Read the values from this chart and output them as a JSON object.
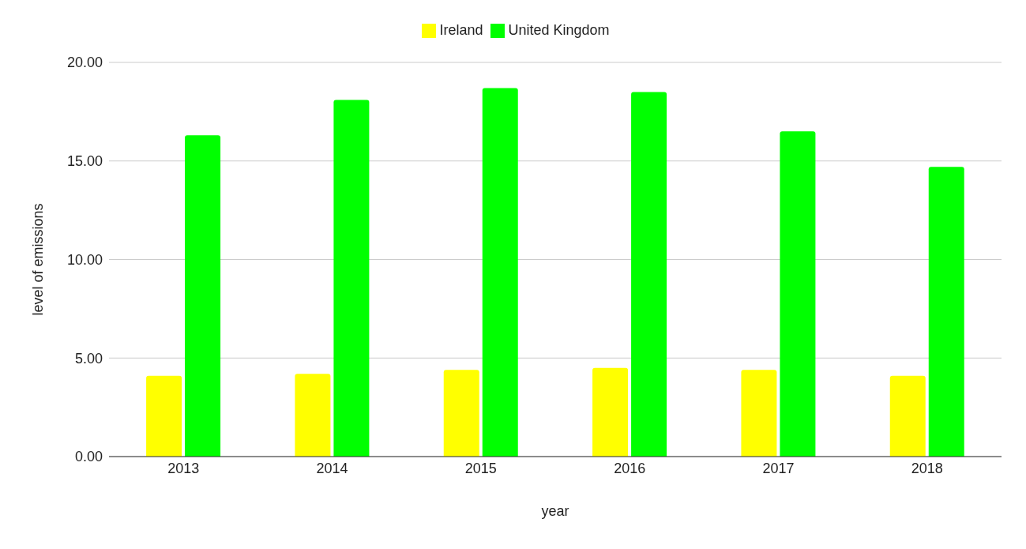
{
  "chart_data": {
    "type": "bar",
    "xlabel": "year",
    "ylabel": "level of emissions",
    "categories": [
      "2013",
      "2014",
      "2015",
      "2016",
      "2017",
      "2018"
    ],
    "series": [
      {
        "name": "Ireland",
        "color": "#ffff00",
        "values": [
          4.1,
          4.2,
          4.4,
          4.5,
          4.4,
          4.1
        ]
      },
      {
        "name": "United Kingdom",
        "color": "#00ff00",
        "values": [
          16.3,
          18.1,
          18.7,
          18.5,
          16.5,
          14.7
        ]
      }
    ],
    "ylim": [
      0,
      20
    ],
    "yticks": [
      {
        "value": 0,
        "label": "0.00"
      },
      {
        "value": 5,
        "label": "5.00"
      },
      {
        "value": 10,
        "label": "10.00"
      },
      {
        "value": 15,
        "label": "15.00"
      },
      {
        "value": 20,
        "label": "20.00"
      }
    ],
    "grid": "y",
    "legend": "top"
  }
}
